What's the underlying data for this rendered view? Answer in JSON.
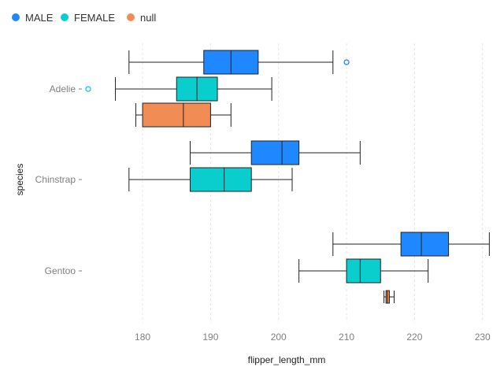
{
  "chart_data": {
    "type": "boxplot",
    "title": "",
    "xlabel": "flipper_length_mm",
    "ylabel": "species",
    "xlim": [
      172,
      232
    ],
    "xticks": [
      180,
      190,
      200,
      210,
      220,
      230
    ],
    "grid": "vertical dashed",
    "legend": {
      "position": "top-left",
      "entries": [
        {
          "name": "MALE",
          "color": "#1f87ff"
        },
        {
          "name": "FEMALE",
          "color": "#0acdcd"
        },
        {
          "name": "null",
          "color": "#f28c55"
        }
      ]
    },
    "categories": [
      "Adelie",
      "Chinstrap",
      "Gentoo"
    ],
    "boxes": [
      {
        "species": "Adelie",
        "series": "MALE",
        "color": "#1f87ff",
        "min": 178,
        "q1": 189,
        "median": 193,
        "q3": 197,
        "max": 208,
        "outliers": [
          210
        ]
      },
      {
        "species": "Adelie",
        "series": "FEMALE",
        "color": "#0acdcd",
        "min": 176,
        "q1": 185,
        "median": 188,
        "q3": 191,
        "max": 199,
        "outliers": [
          172
        ]
      },
      {
        "species": "Adelie",
        "series": "null",
        "color": "#f28c55",
        "min": 179,
        "q1": 180,
        "median": 186,
        "q3": 190,
        "max": 193,
        "outliers": []
      },
      {
        "species": "Chinstrap",
        "series": "MALE",
        "color": "#1f87ff",
        "min": 187,
        "q1": 196,
        "median": 200.5,
        "q3": 203,
        "max": 212,
        "outliers": []
      },
      {
        "species": "Chinstrap",
        "series": "FEMALE",
        "color": "#0acdcd",
        "min": 178,
        "q1": 187,
        "median": 192,
        "q3": 196,
        "max": 202,
        "outliers": []
      },
      {
        "species": "Gentoo",
        "series": "MALE",
        "color": "#1f87ff",
        "min": 208,
        "q1": 218,
        "median": 221,
        "q3": 225,
        "max": 231,
        "outliers": []
      },
      {
        "species": "Gentoo",
        "series": "FEMALE",
        "color": "#0acdcd",
        "min": 203,
        "q1": 210,
        "median": 212,
        "q3": 215,
        "max": 222,
        "outliers": []
      },
      {
        "species": "Gentoo",
        "series": "null",
        "color": "#f28c55",
        "min": 215.5,
        "q1": 215.8,
        "median": 216,
        "q3": 216.3,
        "max": 217,
        "outliers": []
      }
    ]
  }
}
